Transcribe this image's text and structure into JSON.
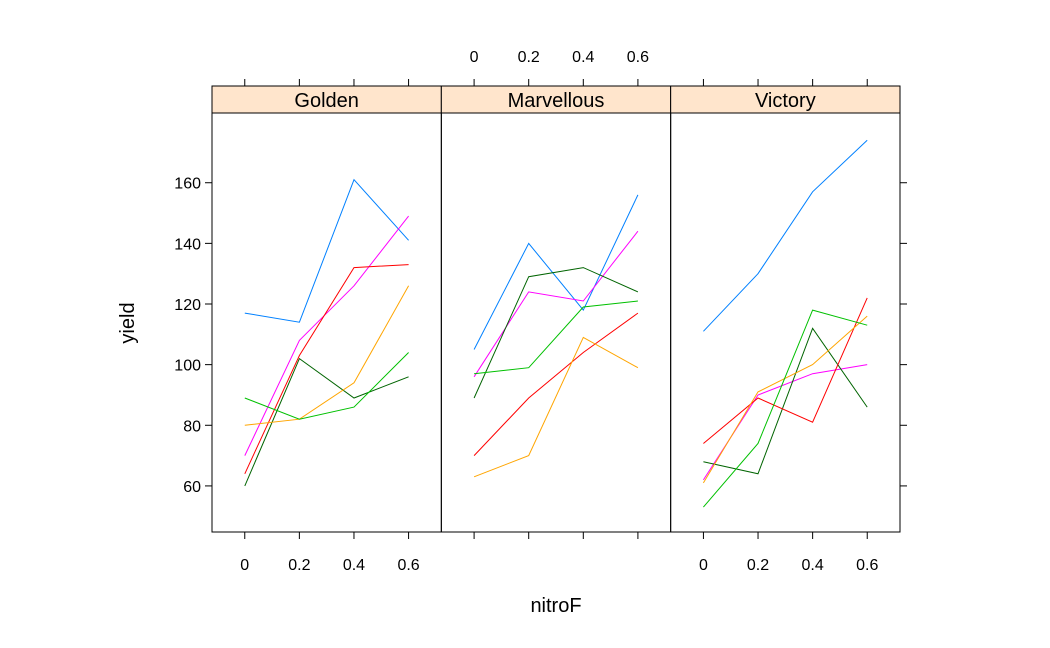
{
  "chart_data": {
    "type": "line",
    "layout": "trellis-1x3",
    "xlabel": "nitroF",
    "ylabel": "yield",
    "x_ticks": [
      "0",
      "0.2",
      "0.4",
      "0.6"
    ],
    "x_values": [
      0,
      0.2,
      0.4,
      0.6
    ],
    "xlim": [
      -0.12,
      0.72
    ],
    "y_ticks": [
      60,
      80,
      100,
      120,
      140,
      160
    ],
    "ylim": [
      44.8,
      183
    ],
    "grid": false,
    "legend": "none",
    "strip_color": "#ffe5cc",
    "series_colors": [
      "#0080ff",
      "#ff00ff",
      "#006400",
      "#ff0000",
      "#ffa500",
      "#00c000"
    ],
    "panels": [
      {
        "name": "Golden",
        "series": [
          {
            "color": "#0080ff",
            "values": [
              117,
              114,
              161,
              141
            ]
          },
          {
            "color": "#ff00ff",
            "values": [
              70,
              108,
              126,
              149
            ]
          },
          {
            "color": "#006400",
            "values": [
              60,
              102,
              89,
              96
            ]
          },
          {
            "color": "#ff0000",
            "values": [
              64,
              103,
              132,
              133
            ]
          },
          {
            "color": "#ffa500",
            "values": [
              80,
              82,
              94,
              126
            ]
          },
          {
            "color": "#00c000",
            "values": [
              89,
              82,
              86,
              104
            ]
          }
        ]
      },
      {
        "name": "Marvellous",
        "series": [
          {
            "color": "#0080ff",
            "values": [
              105,
              140,
              118,
              156
            ]
          },
          {
            "color": "#ff00ff",
            "values": [
              96,
              124,
              121,
              144
            ]
          },
          {
            "color": "#006400",
            "values": [
              89,
              129,
              132,
              124
            ]
          },
          {
            "color": "#ff0000",
            "values": [
              70,
              89,
              104,
              117
            ]
          },
          {
            "color": "#ffa500",
            "values": [
              63,
              70,
              109,
              99
            ]
          },
          {
            "color": "#00c000",
            "values": [
              97,
              99,
              119,
              121
            ]
          }
        ]
      },
      {
        "name": "Victory",
        "series": [
          {
            "color": "#0080ff",
            "values": [
              111,
              130,
              157,
              174
            ]
          },
          {
            "color": "#ff00ff",
            "values": [
              62,
              90,
              97,
              100
            ]
          },
          {
            "color": "#006400",
            "values": [
              68,
              64,
              112,
              86
            ]
          },
          {
            "color": "#ff0000",
            "values": [
              74,
              89,
              81,
              122
            ]
          },
          {
            "color": "#ffa500",
            "values": [
              61,
              91,
              100,
              116
            ]
          },
          {
            "color": "#00c000",
            "values": [
              53,
              74,
              118,
              113
            ]
          }
        ]
      }
    ]
  }
}
